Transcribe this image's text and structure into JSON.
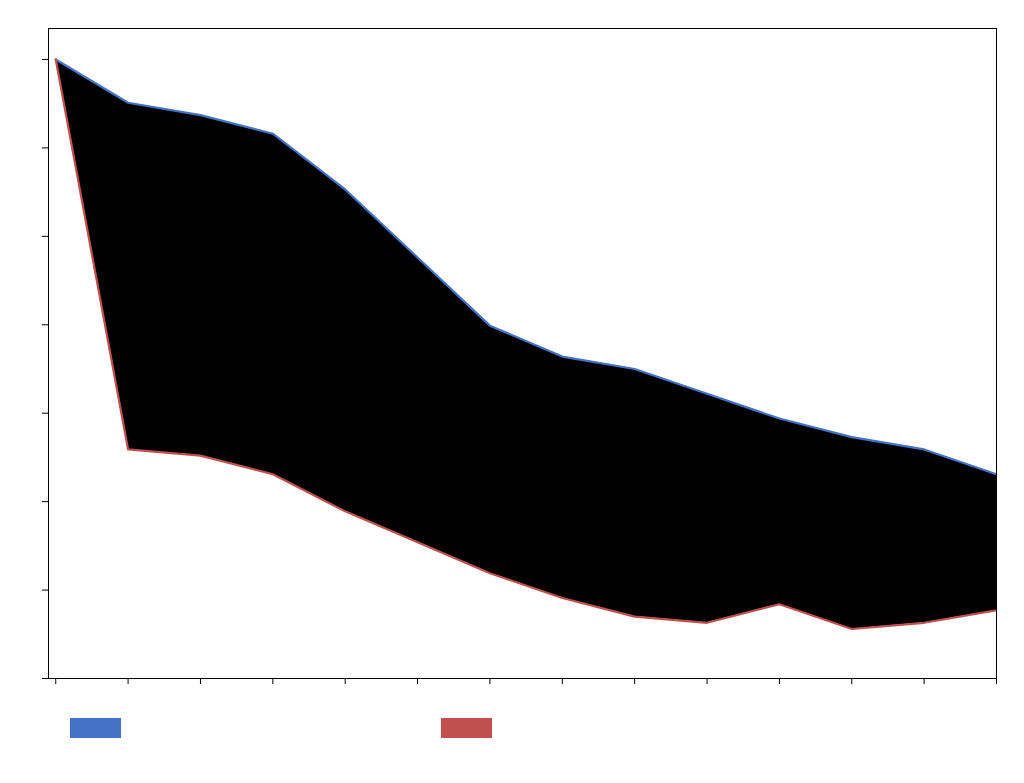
{
  "chart_data": {
    "type": "line",
    "x": [
      0,
      1,
      2,
      3,
      4,
      5,
      6,
      7,
      8,
      9,
      10,
      11,
      12,
      13
    ],
    "series": [
      {
        "color": "#4472C4",
        "values": [
          100,
          93,
          91,
          88,
          79,
          68,
          57,
          52,
          50,
          46,
          42,
          39,
          37,
          33
        ]
      },
      {
        "color": "#C0504D",
        "values": [
          100,
          37,
          36,
          33,
          27,
          22,
          17,
          13,
          10,
          9,
          12,
          8,
          9,
          11
        ]
      }
    ],
    "xlim": [
      -0.1,
      13
    ],
    "ylim": [
      0,
      105
    ],
    "xticks": [
      0,
      1,
      2,
      3,
      4,
      5,
      6,
      7,
      8,
      9,
      10,
      11,
      12,
      13
    ],
    "yticks": [
      0,
      14.285714285714286,
      28.571428571428573,
      42.857142857142854,
      57.142857142857146,
      71.42857142857143,
      85.71428571428572,
      100
    ],
    "tick_labels": false,
    "grid": false,
    "legend": "bottom"
  }
}
